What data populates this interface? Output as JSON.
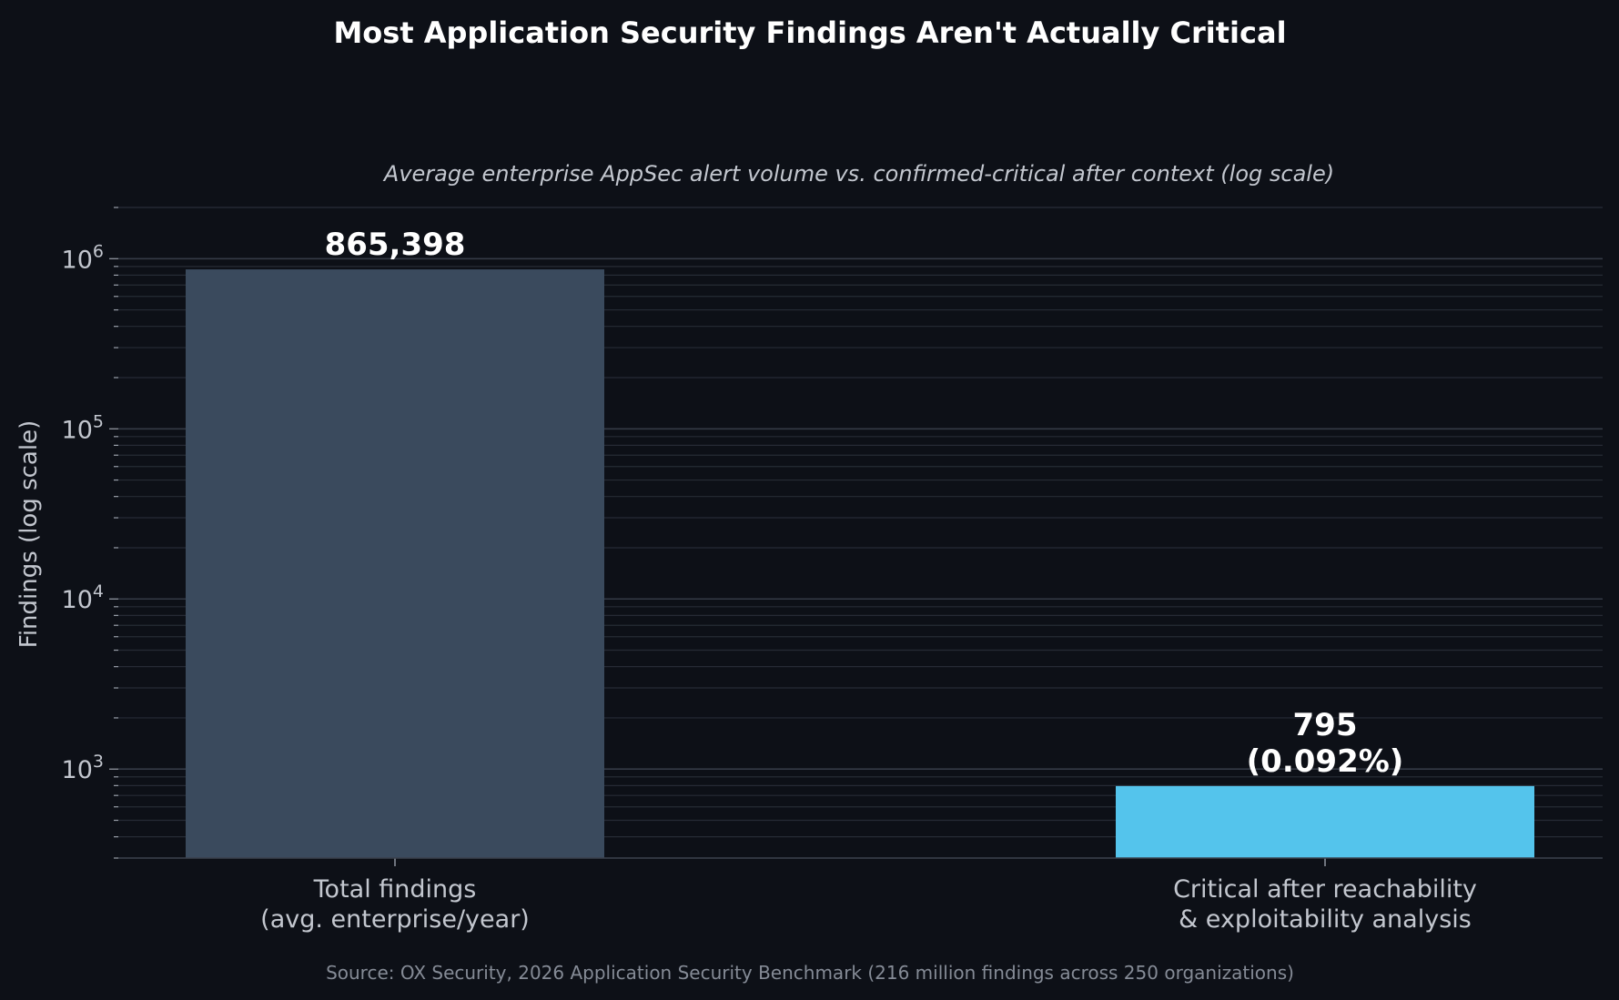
{
  "chart_data": {
    "type": "bar",
    "title": "Most Application Security Findings Aren't Actually Critical",
    "subtitle": "Average enterprise AppSec alert volume vs. confirmed-critical after context (log scale)",
    "ylabel": "Findings (log scale)",
    "yscale": "log",
    "ylim": [
      300,
      2000000
    ],
    "ytick_base": "10",
    "yticks": [
      {
        "value": 1000,
        "exp": "3"
      },
      {
        "value": 10000,
        "exp": "4"
      },
      {
        "value": 100000,
        "exp": "5"
      },
      {
        "value": 1000000,
        "exp": "6"
      }
    ],
    "grid": true,
    "categories": [
      [
        "Total findings",
        "(avg. enterprise/year)"
      ],
      [
        "Critical after reachability",
        "& exploitability analysis"
      ]
    ],
    "values": [
      865398,
      795
    ],
    "data_labels": [
      [
        "865,398"
      ],
      [
        "795",
        "(0.092%)"
      ]
    ],
    "colors": [
      "#3a4a5d",
      "#54c4ec"
    ],
    "source": "Source: OX Security, 2026 Application Security Benchmark (216 million findings across 250 organizations)"
  }
}
